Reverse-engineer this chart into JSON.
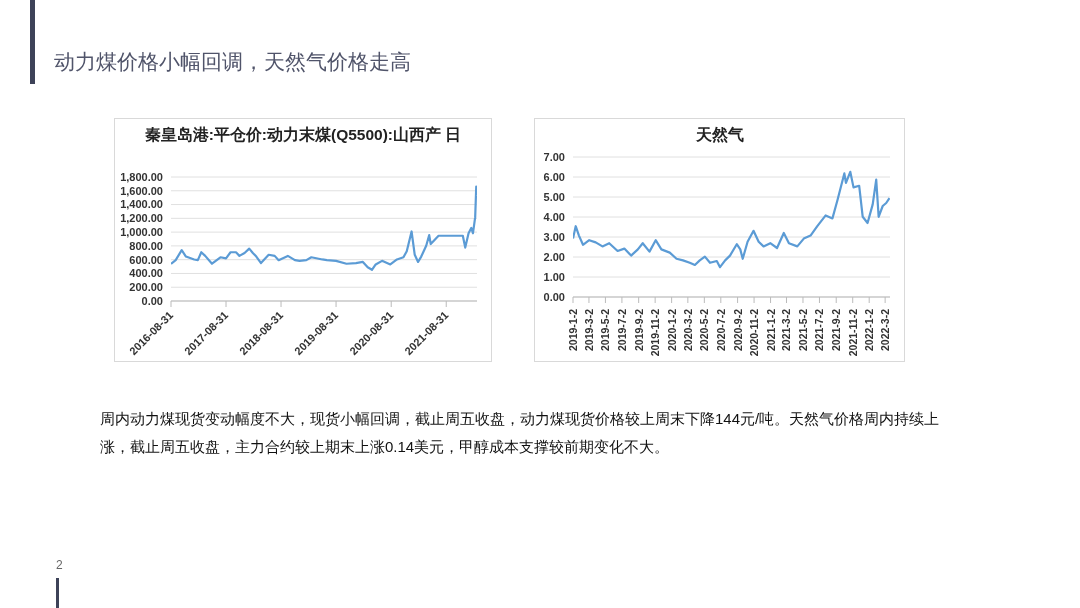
{
  "chart_data": [
    {
      "type": "other",
      "title": "动力煤价格小幅回调，天然气价格走高",
      "annotations": [
        "周内动力煤现货变动幅度不大，现货小幅回调，截止周五收盘，动力煤现货价格较上周末下降144元/吨。天然气价格周内持续上涨，截止周五收盘，主力合约较上期末上涨0.14美元，甲醇成本支撑较前期变化不大。",
        "2"
      ]
    },
    {
      "type": "line",
      "title": "秦皇岛港:平仓价:动力末煤(Q5500):山西产 日",
      "x": [
        "2016-08-31",
        "2016-10-01",
        "2016-11-10",
        "2016-12-08",
        "2017-02-01",
        "2017-02-25",
        "2017-03-20",
        "2017-04-15",
        "2017-05-30",
        "2017-07-25",
        "2017-08-31",
        "2017-09-30",
        "2017-11-05",
        "2017-11-28",
        "2018-01-01",
        "2018-02-01",
        "2018-02-25",
        "2018-03-20",
        "2018-04-20",
        "2018-06-10",
        "2018-07-20",
        "2018-08-15",
        "2018-10-15",
        "2018-12-01",
        "2019-01-01",
        "2019-02-15",
        "2019-03-20",
        "2019-06-01",
        "2019-07-01",
        "2019-08-31",
        "2019-11-08",
        "2020-01-10",
        "2020-02-25",
        "2020-03-28",
        "2020-04-25",
        "2020-05-20",
        "2020-07-01",
        "2020-08-25",
        "2020-10-08",
        "2020-11-20",
        "2020-12-12",
        "2021-01-13",
        "2021-02-03",
        "2021-02-25",
        "2021-03-18",
        "2021-04-20",
        "2021-05-10",
        "2021-05-20",
        "2021-07-11",
        "2021-12-19",
        "2022-01-04",
        "2022-01-26",
        "2022-02-13",
        "2022-02-24",
        "2022-03-11",
        "2022-03-18",
        "2022-03-22"
      ],
      "series": [
        {
          "color": "#5b9bd5",
          "values": [
            540,
            593,
            739,
            645,
            603,
            593,
            708,
            655,
            541,
            635,
            619,
            708,
            708,
            655,
            697,
            760,
            697,
            645,
            551,
            671,
            655,
            593,
            655,
            593,
            583,
            593,
            635,
            603,
            593,
            583,
            541,
            551,
            567,
            489,
            453,
            531,
            583,
            531,
            603,
            635,
            723,
            1009,
            671,
            567,
            645,
            801,
            957,
            827,
            947,
            947,
            775,
            983,
            1061,
            983,
            1217,
            1660,
            1530
          ]
        }
      ],
      "xlim": [
        "2016-08-31",
        "2022-03-23"
      ],
      "xticks": [
        "2016-08-31",
        "2017-08-31",
        "2018-08-31",
        "2019-08-31",
        "2020-08-31",
        "2021-08-31"
      ],
      "ylim": [
        0,
        1800
      ],
      "yticks": [
        {
          "value": 0,
          "label": "0.00"
        },
        {
          "value": 200,
          "label": "200.00"
        },
        {
          "value": 400,
          "label": "400.00"
        },
        {
          "value": 600,
          "label": "600.00"
        },
        {
          "value": 800,
          "label": "800.00"
        },
        {
          "value": 1000,
          "label": "1,000.00"
        },
        {
          "value": 1200,
          "label": "1,200.00"
        },
        {
          "value": 1400,
          "label": "1,400.00"
        },
        {
          "value": 1600,
          "label": "1,600.00"
        },
        {
          "value": 1800,
          "label": "1,800.00"
        }
      ],
      "grid": "y",
      "line_style": "solid"
    },
    {
      "type": "line",
      "title": "天然气",
      "x": [
        "2019-01-02",
        "2019-01-12",
        "2019-01-24",
        "2019-02-08",
        "2019-03-03",
        "2019-03-27",
        "2019-04-21",
        "2019-05-16",
        "2019-06-16",
        "2019-07-11",
        "2019-08-05",
        "2019-08-30",
        "2019-09-17",
        "2019-10-12",
        "2019-11-04",
        "2019-11-25",
        "2019-12-26",
        "2020-01-20",
        "2020-02-13",
        "2020-03-09",
        "2020-03-28",
        "2020-04-15",
        "2020-05-04",
        "2020-05-23",
        "2020-06-17",
        "2020-06-29",
        "2020-07-18",
        "2020-08-05",
        "2020-08-30",
        "2020-09-12",
        "2020-09-21",
        "2020-10-09",
        "2020-10-31",
        "2020-11-19",
        "2020-12-07",
        "2021-01-01",
        "2021-01-26",
        "2021-02-20",
        "2021-03-11",
        "2021-04-11",
        "2021-05-05",
        "2021-05-30",
        "2021-06-24",
        "2021-07-25",
        "2021-08-19",
        "2021-09-07",
        "2021-10-02",
        "2021-10-08",
        "2021-10-24",
        "2021-11-05",
        "2021-11-26",
        "2021-12-09",
        "2021-12-27",
        "2022-01-15",
        "2022-01-28",
        "2022-02-06",
        "2022-02-21",
        "2022-03-06",
        "2022-03-18"
      ],
      "series": [
        {
          "color": "#5b9bd5",
          "values": [
            2.92,
            3.54,
            3.07,
            2.61,
            2.84,
            2.73,
            2.53,
            2.69,
            2.3,
            2.42,
            2.07,
            2.38,
            2.69,
            2.27,
            2.84,
            2.38,
            2.22,
            1.91,
            1.83,
            1.71,
            1.6,
            1.83,
            2.02,
            1.71,
            1.8,
            1.49,
            1.83,
            2.07,
            2.64,
            2.38,
            1.91,
            2.76,
            3.31,
            2.76,
            2.53,
            2.69,
            2.45,
            3.2,
            2.69,
            2.53,
            2.92,
            3.07,
            3.54,
            4.08,
            3.93,
            4.86,
            6.18,
            5.71,
            6.26,
            5.48,
            5.56,
            4.01,
            3.7,
            4.63,
            5.87,
            4.01,
            4.55,
            4.7,
            4.94
          ]
        }
      ],
      "xlim": [
        "2019-01-02",
        "2022-03-20"
      ],
      "xticks": [
        {
          "value": "2019-01-02",
          "label": "2019-1-2"
        },
        {
          "value": "2019-03-02",
          "label": "2019-3-2"
        },
        {
          "value": "2019-05-02",
          "label": "2019-5-2"
        },
        {
          "value": "2019-07-02",
          "label": "2019-7-2"
        },
        {
          "value": "2019-09-02",
          "label": "2019-9-2"
        },
        {
          "value": "2019-11-02",
          "label": "2019-11-2"
        },
        {
          "value": "2020-01-02",
          "label": "2020-1-2"
        },
        {
          "value": "2020-03-02",
          "label": "2020-3-2"
        },
        {
          "value": "2020-05-02",
          "label": "2020-5-2"
        },
        {
          "value": "2020-07-02",
          "label": "2020-7-2"
        },
        {
          "value": "2020-09-02",
          "label": "2020-9-2"
        },
        {
          "value": "2020-11-02",
          "label": "2020-11-2"
        },
        {
          "value": "2021-01-02",
          "label": "2021-1-2"
        },
        {
          "value": "2021-03-02",
          "label": "2021-3-2"
        },
        {
          "value": "2021-05-02",
          "label": "2021-5-2"
        },
        {
          "value": "2021-07-02",
          "label": "2021-7-2"
        },
        {
          "value": "2021-09-02",
          "label": "2021-9-2"
        },
        {
          "value": "2021-11-02",
          "label": "2021-11-2"
        },
        {
          "value": "2022-01-02",
          "label": "2022-1-2"
        },
        {
          "value": "2022-03-02",
          "label": "2022-3-2"
        }
      ],
      "ylim": [
        0,
        7
      ],
      "yticks": [
        {
          "value": 0,
          "label": "0.00"
        },
        {
          "value": 1,
          "label": "1.00"
        },
        {
          "value": 2,
          "label": "2.00"
        },
        {
          "value": 3,
          "label": "3.00"
        },
        {
          "value": 4,
          "label": "4.00"
        },
        {
          "value": 5,
          "label": "5.00"
        },
        {
          "value": 6,
          "label": "6.00"
        },
        {
          "value": 7,
          "label": "7.00"
        }
      ],
      "grid": "y",
      "line_style": "solid"
    }
  ]
}
